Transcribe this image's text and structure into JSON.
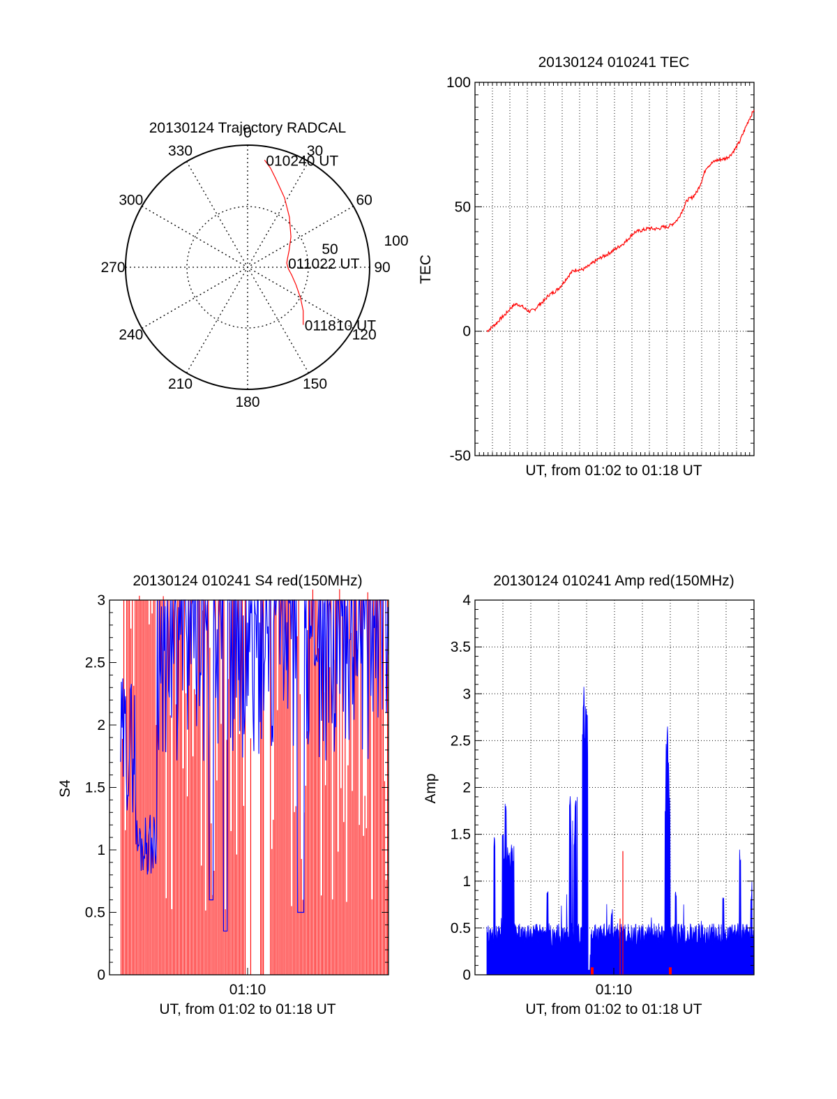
{
  "colors": {
    "red": "#ff0000",
    "blue": "#0000ff",
    "axis": "#000000"
  },
  "chart_data": [
    {
      "id": "trajectory",
      "type": "polar",
      "title": "20130124 Trajectory RADCAL",
      "azimuth_labels": [
        "0",
        "30",
        "60",
        "90",
        "120",
        "150",
        "180",
        "210",
        "240",
        "270",
        "300",
        "330"
      ],
      "elevation_labels": [
        "50",
        "100"
      ],
      "track": [
        {
          "az": 9,
          "el": 10
        },
        {
          "az": 13,
          "el": 15
        },
        {
          "az": 18,
          "el": 22
        },
        {
          "az": 28,
          "el": 32
        },
        {
          "az": 40,
          "el": 42
        },
        {
          "az": 55,
          "el": 51
        },
        {
          "az": 68,
          "el": 57
        },
        {
          "az": 78,
          "el": 60
        },
        {
          "az": 84,
          "el": 61
        },
        {
          "az": 92,
          "el": 60
        },
        {
          "az": 100,
          "el": 57
        },
        {
          "az": 110,
          "el": 52
        },
        {
          "az": 120,
          "el": 45
        },
        {
          "az": 128,
          "el": 38
        },
        {
          "az": 136,
          "el": 31
        }
      ],
      "track_labels": [
        {
          "text": "010240 UT",
          "az": 9,
          "el": 10
        },
        {
          "text": "011022 UT",
          "az": 84,
          "el": 61
        },
        {
          "text": "011810 UT",
          "az": 136,
          "el": 31
        }
      ]
    },
    {
      "id": "tec",
      "type": "line",
      "title": "20130124 010241 TEC",
      "xlabel": "UT, from 01:02 to 01:18 UT",
      "ylabel": "TEC",
      "ylim": [
        -50,
        100
      ],
      "yticks": [
        "100",
        "50",
        "0",
        "-50"
      ],
      "grid": true,
      "series": [
        {
          "values": [
            0.0,
            1.5,
            3.2,
            5.3,
            7.0,
            9.4,
            10.9,
            10.5,
            9.0,
            7.9,
            8.7,
            10.8,
            12.2,
            14.6,
            15.6,
            17.1,
            19.4,
            22.0,
            24.2,
            24.8,
            24.7,
            25.7,
            27.1,
            28.5,
            29.7,
            30.6,
            31.8,
            33.1,
            34.4,
            35.8,
            37.9,
            39.8,
            40.3,
            40.8,
            41.4,
            41.1,
            41.2,
            41.9,
            42.0,
            43.2,
            44.9,
            48.6,
            52.7,
            53.7,
            55.8,
            60.3,
            65.8,
            67.3,
            68.6,
            69.0,
            69.4,
            70.6,
            73.1,
            76.2,
            80.8,
            85.3,
            88.9
          ]
        }
      ]
    },
    {
      "id": "s4",
      "type": "bar",
      "title": "20130124 010241 S4 red(150MHz)",
      "xlabel": "UT, from 01:02 to 01:18 UT",
      "ylabel": "S4",
      "ylim": [
        0,
        3
      ],
      "yticks": [
        "3",
        "2.5",
        "2",
        "1.5",
        "1",
        "0.5",
        "0"
      ],
      "xtick_label": "01:10",
      "grid": false
    },
    {
      "id": "amp",
      "type": "bar",
      "title": "20130124 010241 Amp red(150MHz)",
      "xlabel": "UT, from 01:02 to 01:18 UT",
      "ylabel": "Amp",
      "ylim": [
        0,
        4
      ],
      "yticks": [
        "4",
        "3.5",
        "3",
        "2.5",
        "2",
        "1.5",
        "1",
        "0.5",
        "0"
      ],
      "xtick_label": "01:10",
      "grid": true,
      "peaks": [
        {
          "x": 0.03,
          "value": 0.7
        },
        {
          "x": 0.07,
          "value": 1.5
        },
        {
          "x": 0.1,
          "value": 1.55
        },
        {
          "x": 0.11,
          "value": 1.85
        },
        {
          "x": 0.13,
          "value": 1.4
        },
        {
          "x": 0.26,
          "value": 0.9
        },
        {
          "x": 0.34,
          "value": 2.0
        },
        {
          "x": 0.36,
          "value": 1.9
        },
        {
          "x": 0.39,
          "value": 3.1
        },
        {
          "x": 0.4,
          "value": 2.9
        },
        {
          "x": 0.49,
          "value": 0.7
        },
        {
          "x": 0.69,
          "value": 2.65
        },
        {
          "x": 0.72,
          "value": 0.9
        },
        {
          "x": 0.89,
          "value": 0.85
        },
        {
          "x": 0.95,
          "value": 1.35
        },
        {
          "x": 0.99,
          "value": 0.85
        }
      ],
      "red_spikes": [
        {
          "x": 0.53,
          "value": 1.32
        },
        {
          "x": 0.52,
          "value": 0.6
        }
      ]
    }
  ]
}
